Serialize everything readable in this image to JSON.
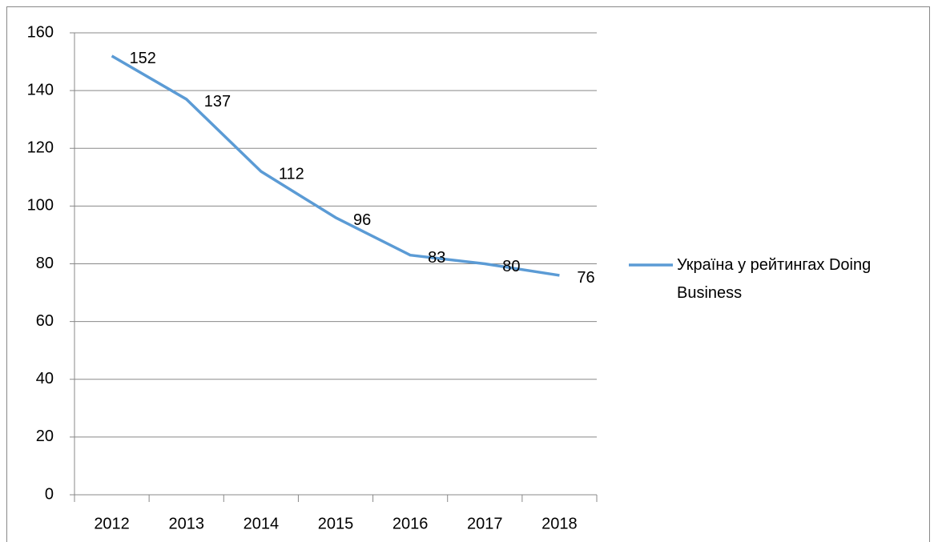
{
  "chart_data": {
    "type": "line",
    "categories": [
      "2012",
      "2013",
      "2014",
      "2015",
      "2016",
      "2017",
      "2018"
    ],
    "series": [
      {
        "name": "Україна у рейтингах Doing Business",
        "color": "#5b9bd5",
        "values": [
          152,
          137,
          112,
          96,
          83,
          80,
          76
        ]
      }
    ],
    "ylim": [
      0,
      160
    ],
    "yticks": [
      0,
      20,
      40,
      60,
      80,
      100,
      120,
      140,
      160
    ],
    "grid": true,
    "legend": "right",
    "data_labels": true
  }
}
